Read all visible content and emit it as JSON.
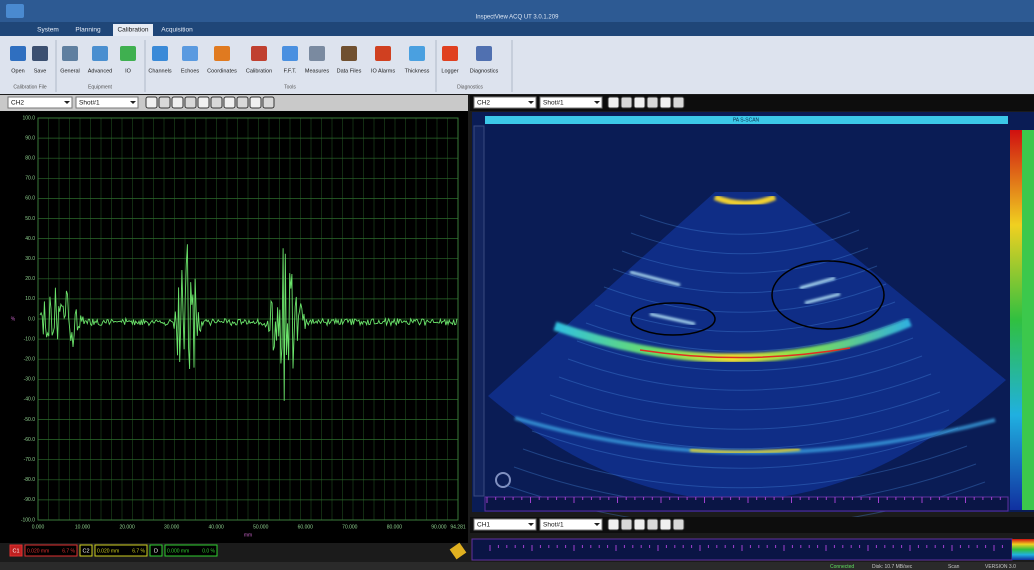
{
  "window": {
    "title": "InspectView ACQ UT 3.0.1.209"
  },
  "tabs": [
    "System",
    "Planning",
    "Calibration",
    "Acquisition"
  ],
  "ribbon": {
    "groups": [
      {
        "label": "Calibration File",
        "buttons": [
          "Open",
          "Save"
        ]
      },
      {
        "label": "Equipment",
        "buttons": [
          "General",
          "Advanced",
          "IO"
        ]
      },
      {
        "label": "Tools",
        "buttons": [
          "Channels",
          "Echoes",
          "Coordinates",
          "Calibration",
          "F.F.T.",
          "Measures",
          "Data Files",
          "IO Alarms",
          "Thickness"
        ]
      },
      {
        "label": "Diagnostics",
        "buttons": [
          "Logger",
          "Diagnostics"
        ]
      }
    ]
  },
  "ascan": {
    "channel": "CH2",
    "shot": "Shot#1",
    "y_labels": [
      "100.0",
      "90.0",
      "80.0",
      "70.0",
      "60.0",
      "50.0",
      "40.0",
      "30.0",
      "20.0",
      "10.0",
      "0.0",
      "-10.0",
      "-20.0",
      "-30.0",
      "-40.0",
      "-50.0",
      "-60.0",
      "-70.0",
      "-80.0",
      "-90.0",
      "-100.0"
    ],
    "x_labels": [
      "0.000",
      "10.000",
      "20.000",
      "30.000",
      "40.000",
      "50.000",
      "60.000",
      "70.000",
      "80.000",
      "90.000",
      "94.281"
    ],
    "x_unit": "mm",
    "y_unit": "%",
    "cursors": [
      {
        "name": "C1",
        "position": "0.020 mm",
        "amplitude": "6.7 %"
      },
      {
        "name": "C2",
        "position": "0.020 mm",
        "amplitude": "6.7 %"
      },
      {
        "name": "D",
        "position": "0.000 mm",
        "amplitude": "0.0 %"
      }
    ]
  },
  "sscan": {
    "channel": "CH2",
    "shot": "Shot#1",
    "title": "PA S-SCAN"
  },
  "cscan": {
    "channel": "CH1",
    "shot": "Shot#1"
  },
  "status": [
    "Connected",
    "Disk: 10.7 MB/sec",
    "Scan",
    "VERSION 3.0"
  ]
}
